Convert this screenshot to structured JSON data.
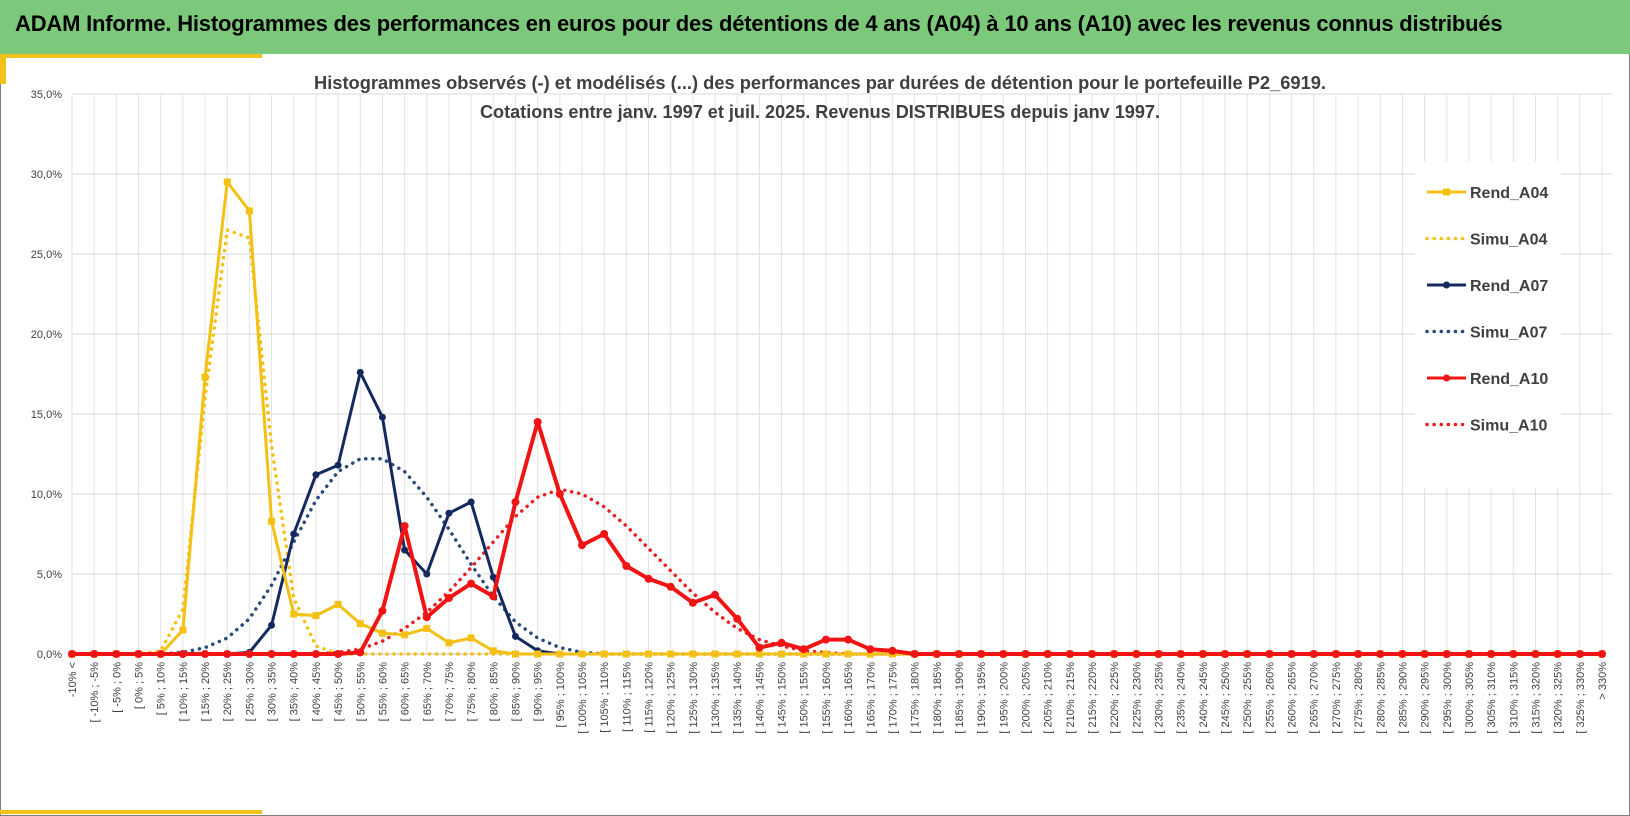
{
  "header": {
    "title": "ADAM Informe. Histogrammes des performances en euros pour des détentions de 4 ans (A04) à 10 ans (A10) avec les revenus connus distribués"
  },
  "chart_data": {
    "type": "line",
    "title": "Histogrammes observés (-) et modélisés (...) des performances par durées de détention pour le portefeuille P2_6919.",
    "subtitle": "Cotations entre janv. 1997 et juil. 2025. Revenus DISTRIBUES depuis janv 1997.",
    "ylim": [
      0,
      35
    ],
    "yticks": [
      "0,0%",
      "5,0%",
      "10,0%",
      "15,0%",
      "20,0%",
      "25,0%",
      "30,0%",
      "35,0%"
    ],
    "grid": true,
    "legend_position": "right",
    "categories": [
      "-10% <",
      "[ -10% ; -5%",
      "[ -5% ; 0%",
      "[ 0% ; 5%",
      "[ 5% ; 10%",
      "[ 10% ; 15%",
      "[ 15% ; 20%",
      "[ 20% ; 25%",
      "[ 25% ; 30%",
      "[ 30% ; 35%",
      "[ 35% ; 40%",
      "[ 40% ; 45%",
      "[ 45% ; 50%",
      "[ 50% ; 55%",
      "[ 55% ; 60%",
      "[ 60% ; 65%",
      "[ 65% ; 70%",
      "[ 70% ; 75%",
      "[ 75% ; 80%",
      "[ 80% ; 85%",
      "[ 85% ; 90%",
      "[ 90% ; 95%",
      "[ 95% ; 100%",
      "[ 100% ; 105%",
      "[ 105% ; 110%",
      "[ 110% ; 115%",
      "[ 115% ; 120%",
      "[ 120% ; 125%",
      "[ 125% ; 130%",
      "[ 130% ; 135%",
      "[ 135% ; 140%",
      "[ 140% ; 145%",
      "[ 145% ; 150%",
      "[ 150% ; 155%",
      "[ 155% ; 160%",
      "[ 160% ; 165%",
      "[ 165% ; 170%",
      "[ 170% ; 175%",
      "[ 175% ; 180%",
      "[ 180% ; 185%",
      "[ 185% ; 190%",
      "[ 190% ; 195%",
      "[ 195% ; 200%",
      "[ 200% ; 205%",
      "[ 205% ; 210%",
      "[ 210% ; 215%",
      "[ 215% ; 220%",
      "[ 220% ; 225%",
      "[ 225% ; 230%",
      "[ 230% ; 235%",
      "[ 235% ; 240%",
      "[ 240% ; 245%",
      "[ 245% ; 250%",
      "[ 250% ; 255%",
      "[ 255% ; 260%",
      "[ 260% ; 265%",
      "[ 265% ; 270%",
      "[ 270% ; 275%",
      "[ 275% ; 280%",
      "[ 280% ; 285%",
      "[ 285% ; 290%",
      "[ 290% ; 295%",
      "[ 295% ; 300%",
      "[ 300% ; 305%",
      "[ 305% ; 310%",
      "[ 310% ; 315%",
      "[ 315% ; 320%",
      "[ 320% ; 325%",
      "[ 325% ; 330%",
      "> 330%"
    ],
    "series": [
      {
        "name": "Rend_A04",
        "style": "solid",
        "color": "#f5c014",
        "values": [
          0,
          0,
          0,
          0,
          0,
          1.5,
          17.3,
          29.5,
          27.7,
          8.3,
          2.5,
          2.4,
          3.1,
          1.9,
          1.3,
          1.2,
          1.6,
          0.7,
          1.0,
          0.2,
          0,
          0,
          0,
          0,
          0,
          0,
          0,
          0,
          0,
          0,
          0,
          0,
          0,
          0,
          0,
          0,
          0,
          0,
          0,
          0,
          0,
          0,
          0,
          0,
          0,
          0,
          0,
          0,
          0,
          0,
          0,
          0,
          0,
          0,
          0,
          0,
          0,
          0,
          0,
          0,
          0,
          0,
          0,
          0,
          0,
          0,
          0,
          0,
          0,
          0
        ]
      },
      {
        "name": "Simu_A04",
        "style": "dotted",
        "color": "#f5c014",
        "values": [
          0,
          0,
          0,
          0,
          0.2,
          2.8,
          16.0,
          26.5,
          26.0,
          13.0,
          3.5,
          0.5,
          0,
          0,
          0,
          0,
          0,
          0,
          0,
          0,
          0,
          0,
          0,
          0,
          0,
          0,
          0,
          0,
          0,
          0,
          0,
          0,
          0,
          0,
          0,
          0,
          0,
          0,
          0,
          0,
          0,
          0,
          0,
          0,
          0,
          0,
          0,
          0,
          0,
          0,
          0,
          0,
          0,
          0,
          0,
          0,
          0,
          0,
          0,
          0,
          0,
          0,
          0,
          0,
          0,
          0,
          0,
          0,
          0,
          0
        ]
      },
      {
        "name": "Rend_A07",
        "style": "solid",
        "color": "#14295e",
        "values": [
          0,
          0,
          0,
          0,
          0,
          0,
          0,
          0,
          0.1,
          1.8,
          7.5,
          11.2,
          11.8,
          17.6,
          14.8,
          6.5,
          5.0,
          8.8,
          9.5,
          4.8,
          1.1,
          0.2,
          0,
          0,
          0,
          0,
          0,
          0,
          0,
          0,
          0,
          0,
          0,
          0,
          0,
          0,
          0,
          0,
          0,
          0,
          0,
          0,
          0,
          0,
          0,
          0,
          0,
          0,
          0,
          0,
          0,
          0,
          0,
          0,
          0,
          0,
          0,
          0,
          0,
          0,
          0,
          0,
          0,
          0,
          0,
          0,
          0,
          0,
          0,
          0
        ]
      },
      {
        "name": "Simu_A07",
        "style": "dotted",
        "color": "#2a4a7a",
        "values": [
          0,
          0,
          0,
          0,
          0,
          0.1,
          0.4,
          1.0,
          2.2,
          4.3,
          7.0,
          9.6,
          11.4,
          12.2,
          12.2,
          11.4,
          9.8,
          7.8,
          5.6,
          3.6,
          2.0,
          1.0,
          0.4,
          0.1,
          0,
          0,
          0,
          0,
          0,
          0,
          0,
          0,
          0,
          0,
          0,
          0,
          0,
          0,
          0,
          0,
          0,
          0,
          0,
          0,
          0,
          0,
          0,
          0,
          0,
          0,
          0,
          0,
          0,
          0,
          0,
          0,
          0,
          0,
          0,
          0,
          0,
          0,
          0,
          0,
          0,
          0,
          0,
          0,
          0,
          0
        ]
      },
      {
        "name": "Rend_A10",
        "style": "solid",
        "color": "#f01414",
        "values": [
          0,
          0,
          0,
          0,
          0,
          0,
          0,
          0,
          0,
          0,
          0,
          0,
          0,
          0.1,
          2.7,
          8.0,
          2.3,
          3.5,
          4.4,
          3.6,
          9.5,
          14.5,
          10.0,
          6.8,
          7.5,
          5.5,
          4.7,
          4.2,
          3.2,
          3.7,
          2.2,
          0.4,
          0.7,
          0.3,
          0.9,
          0.9,
          0.3,
          0.2,
          0,
          0,
          0,
          0,
          0,
          0,
          0,
          0,
          0,
          0,
          0,
          0,
          0,
          0,
          0,
          0,
          0,
          0,
          0,
          0,
          0,
          0,
          0,
          0,
          0,
          0,
          0,
          0,
          0,
          0,
          0,
          0
        ]
      },
      {
        "name": "Simu_A10",
        "style": "dotted",
        "color": "#e82020",
        "values": [
          0,
          0,
          0,
          0,
          0,
          0,
          0,
          0,
          0,
          0,
          0,
          0,
          0.1,
          0.3,
          0.8,
          1.6,
          2.6,
          3.9,
          5.4,
          7.0,
          8.6,
          9.8,
          10.3,
          10.0,
          9.2,
          8.0,
          6.6,
          5.2,
          3.8,
          2.6,
          1.6,
          0.9,
          0.5,
          0.2,
          0.1,
          0,
          0,
          0,
          0,
          0,
          0,
          0,
          0,
          0,
          0,
          0,
          0,
          0,
          0,
          0,
          0,
          0,
          0,
          0,
          0,
          0,
          0,
          0,
          0,
          0,
          0,
          0,
          0,
          0,
          0,
          0,
          0,
          0,
          0,
          0
        ]
      }
    ]
  }
}
